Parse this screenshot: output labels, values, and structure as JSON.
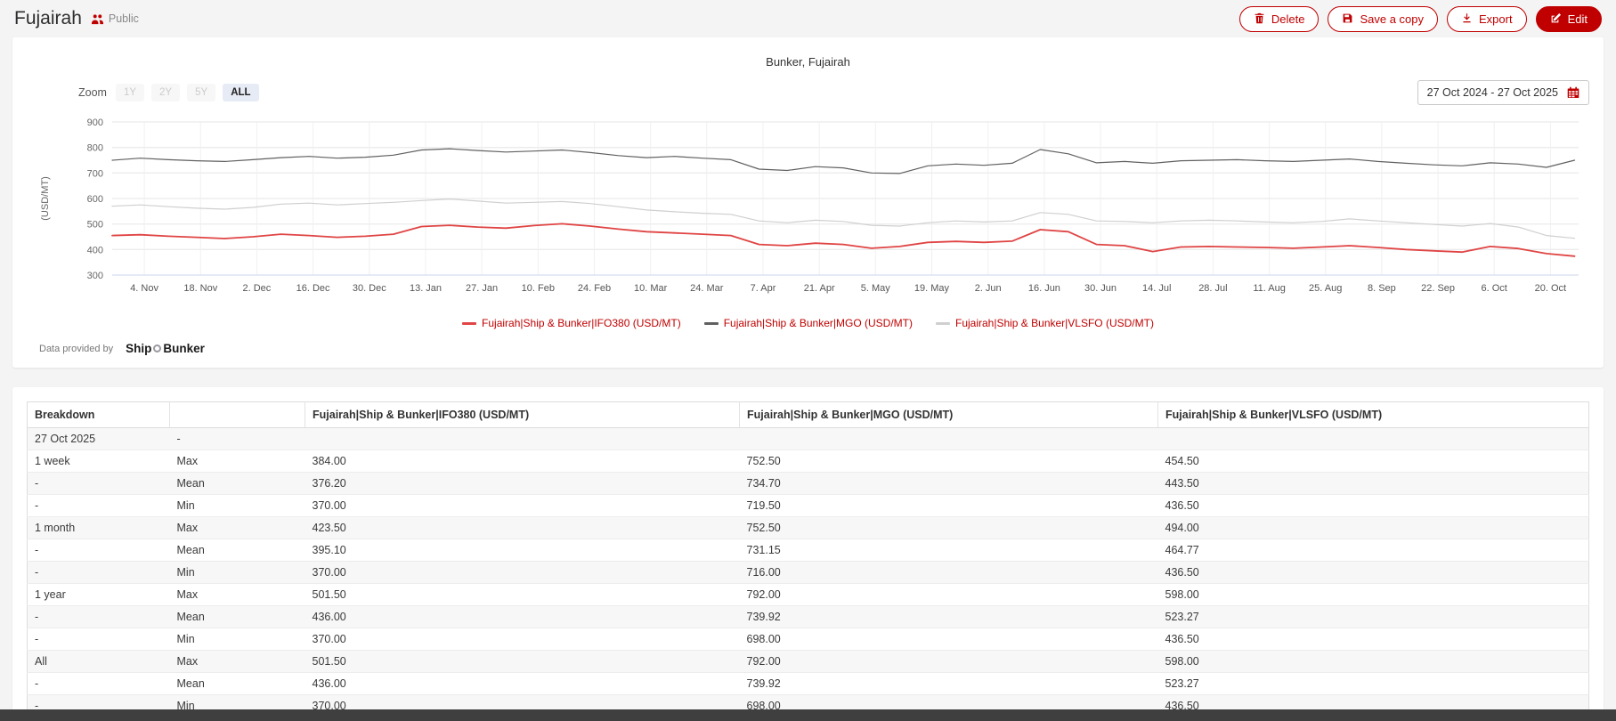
{
  "header": {
    "title": "Fujairah",
    "visibility": "Public",
    "actions": {
      "delete": "Delete",
      "save_copy": "Save a copy",
      "export": "Export",
      "edit": "Edit"
    }
  },
  "colors": {
    "accent": "#c00000",
    "ifo380_line": "#e04444",
    "mgo_line": "#606060",
    "vlsfo_line": "#cfcfcf",
    "legend_text": "#c00000",
    "zoom_active_bg": "#e6ebf5"
  },
  "chart": {
    "title": "Bunker, Fujairah",
    "zoom_label": "Zoom",
    "zoom_options": [
      {
        "label": "1Y",
        "enabled": false,
        "active": false
      },
      {
        "label": "2Y",
        "enabled": false,
        "active": false
      },
      {
        "label": "5Y",
        "enabled": false,
        "active": false
      },
      {
        "label": "ALL",
        "enabled": true,
        "active": true
      }
    ],
    "date_range": "27 Oct 2024 - 27 Oct 2025",
    "provider_prefix": "Data provided by",
    "provider_name_left": "Ship",
    "provider_name_right": "Bunker"
  },
  "chart_data": {
    "type": "line",
    "title": "Bunker, Fujairah",
    "xlabel": "",
    "ylabel": "(USD/MT)",
    "ylim": [
      300,
      900
    ],
    "ytick_step": 100,
    "grid": true,
    "legend_position": "bottom",
    "x_tick_labels": [
      "4. Nov",
      "18. Nov",
      "2. Dec",
      "16. Dec",
      "30. Dec",
      "13. Jan",
      "27. Jan",
      "10. Feb",
      "24. Feb",
      "10. Mar",
      "24. Mar",
      "7. Apr",
      "21. Apr",
      "5. May",
      "19. May",
      "2. Jun",
      "16. Jun",
      "30. Jun",
      "14. Jul",
      "28. Jul",
      "11. Aug",
      "25. Aug",
      "8. Sep",
      "22. Sep",
      "6. Oct",
      "20. Oct"
    ],
    "x_range": "27 Oct 2024 - 27 Oct 2025 (weekly points)",
    "series": [
      {
        "name": "Fujairah|Ship & Bunker|IFO380 (USD/MT)",
        "color": "#e04444",
        "line_width": 1.8,
        "values": [
          455,
          458,
          452,
          448,
          443,
          450,
          460,
          455,
          448,
          452,
          460,
          490,
          495,
          488,
          484,
          494,
          501,
          492,
          480,
          470,
          465,
          460,
          455,
          420,
          415,
          425,
          420,
          405,
          412,
          428,
          432,
          428,
          433,
          478,
          470,
          420,
          415,
          392,
          410,
          412,
          410,
          408,
          405,
          410,
          415,
          408,
          400,
          395,
          390,
          412,
          404,
          384,
          374
        ]
      },
      {
        "name": "Fujairah|Ship & Bunker|MGO (USD/MT)",
        "color": "#606060",
        "line_width": 1.2,
        "values": [
          750,
          758,
          752,
          748,
          745,
          752,
          760,
          765,
          758,
          762,
          770,
          790,
          795,
          788,
          782,
          786,
          790,
          780,
          768,
          760,
          765,
          758,
          752,
          715,
          710,
          725,
          720,
          700,
          698,
          728,
          735,
          730,
          738,
          792,
          775,
          740,
          745,
          738,
          748,
          750,
          752,
          748,
          745,
          750,
          755,
          745,
          738,
          732,
          728,
          740,
          735,
          722,
          750
        ]
      },
      {
        "name": "Fujairah|Ship & Bunker|VLSFO (USD/MT)",
        "color": "#cfcfcf",
        "line_width": 1.2,
        "values": [
          570,
          575,
          568,
          562,
          558,
          565,
          578,
          582,
          575,
          580,
          585,
          592,
          598,
          590,
          582,
          585,
          588,
          580,
          568,
          555,
          548,
          542,
          538,
          512,
          505,
          515,
          510,
          495,
          492,
          505,
          512,
          508,
          512,
          545,
          538,
          512,
          510,
          505,
          512,
          515,
          512,
          508,
          505,
          510,
          520,
          512,
          505,
          498,
          492,
          502,
          488,
          455,
          444
        ]
      }
    ]
  },
  "table": {
    "headers": [
      "Breakdown",
      "",
      "Fujairah|Ship & Bunker|IFO380 (USD/MT)",
      "Fujairah|Ship & Bunker|MGO (USD/MT)",
      "Fujairah|Ship & Bunker|VLSFO (USD/MT)"
    ],
    "rows": [
      [
        "27 Oct 2025",
        "-",
        "",
        "",
        ""
      ],
      [
        "1 week",
        "Max",
        "384.00",
        "752.50",
        "454.50"
      ],
      [
        "-",
        "Mean",
        "376.20",
        "734.70",
        "443.50"
      ],
      [
        "-",
        "Min",
        "370.00",
        "719.50",
        "436.50"
      ],
      [
        "1 month",
        "Max",
        "423.50",
        "752.50",
        "494.00"
      ],
      [
        "-",
        "Mean",
        "395.10",
        "731.15",
        "464.77"
      ],
      [
        "-",
        "Min",
        "370.00",
        "716.00",
        "436.50"
      ],
      [
        "1 year",
        "Max",
        "501.50",
        "792.00",
        "598.00"
      ],
      [
        "-",
        "Mean",
        "436.00",
        "739.92",
        "523.27"
      ],
      [
        "-",
        "Min",
        "370.00",
        "698.00",
        "436.50"
      ],
      [
        "All",
        "Max",
        "501.50",
        "792.00",
        "598.00"
      ],
      [
        "-",
        "Mean",
        "436.00",
        "739.92",
        "523.27"
      ],
      [
        "-",
        "Min",
        "370.00",
        "698.00",
        "436.50"
      ]
    ]
  }
}
